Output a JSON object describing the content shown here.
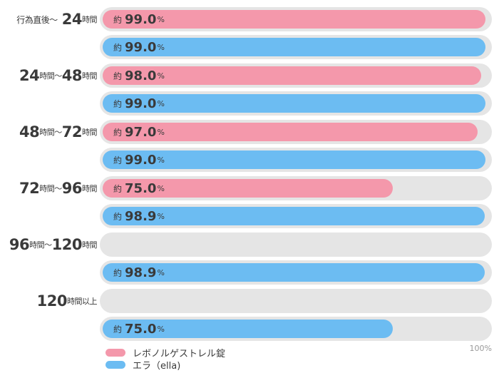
{
  "colors": {
    "track": "#e5e5e5",
    "levonorgestrel": "#f498ab",
    "ella": "#6cbcf2"
  },
  "chart_data": {
    "type": "bar",
    "orientation": "horizontal",
    "xlim": [
      0,
      100
    ],
    "max_label": "100%",
    "value_prefix": "約",
    "value_unit": "%",
    "categories": [
      {
        "parts": [
          {
            "text": "行為直後〜",
            "size": "first"
          },
          {
            "text": "24",
            "size": "big"
          },
          {
            "text": "時間",
            "size": "small"
          }
        ]
      },
      {
        "parts": [
          {
            "text": "24",
            "size": "big"
          },
          {
            "text": "時間〜",
            "size": "small"
          },
          {
            "text": "48",
            "size": "big"
          },
          {
            "text": "時間",
            "size": "small"
          }
        ]
      },
      {
        "parts": [
          {
            "text": "48",
            "size": "big"
          },
          {
            "text": "時間〜",
            "size": "small"
          },
          {
            "text": "72",
            "size": "big"
          },
          {
            "text": "時間",
            "size": "small"
          }
        ]
      },
      {
        "parts": [
          {
            "text": "72",
            "size": "big"
          },
          {
            "text": "時間〜",
            "size": "small"
          },
          {
            "text": "96",
            "size": "big"
          },
          {
            "text": "時間",
            "size": "small"
          }
        ]
      },
      {
        "parts": [
          {
            "text": "96",
            "size": "big"
          },
          {
            "text": "時間〜",
            "size": "small"
          },
          {
            "text": "120",
            "size": "big"
          },
          {
            "text": "時間",
            "size": "small"
          }
        ]
      },
      {
        "parts": [
          {
            "text": "120",
            "size": "big"
          },
          {
            "text": "時間以上",
            "size": "small"
          }
        ]
      }
    ],
    "series": [
      {
        "key": "levonorgestrel",
        "name": "レボノルゲストレル錠",
        "values": [
          "99.0",
          "98.0",
          "97.0",
          "75.0",
          null,
          null
        ]
      },
      {
        "key": "ella",
        "name": "エラ（ella)",
        "values": [
          "99.0",
          "99.0",
          "99.0",
          "98.9",
          "98.9",
          "75.0"
        ]
      }
    ]
  }
}
